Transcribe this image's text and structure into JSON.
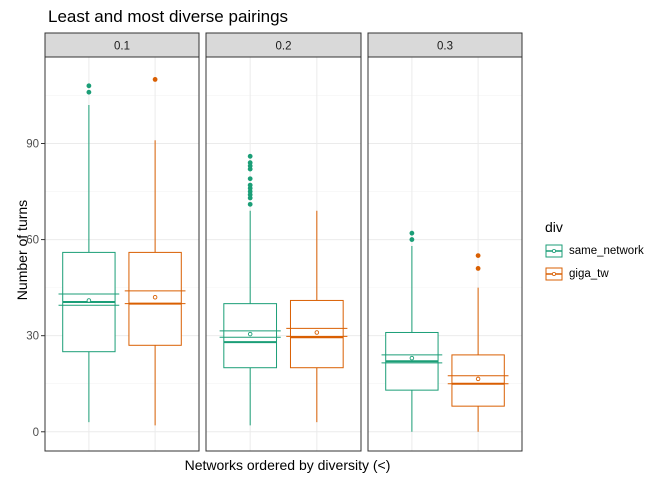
{
  "chart_data": {
    "type": "boxplot",
    "title": "Least and most diverse pairings",
    "xlabel": "Networks ordered by diversity (<)",
    "ylabel": "Number of turns",
    "ylim": [
      -6,
      117
    ],
    "y_ticks": [
      0,
      30,
      60,
      90
    ],
    "grid": true,
    "legend": {
      "title": "div",
      "placement": "right",
      "entries": [
        {
          "name": "same_network",
          "color": "#1b9e77"
        },
        {
          "name": "giga_tw",
          "color": "#d95f02"
        }
      ]
    },
    "panels": [
      {
        "label": "0.1",
        "series": [
          {
            "name": "same_network",
            "color": "#1b9e77",
            "min": 3,
            "q1": 25,
            "median": 40.5,
            "q3": 56,
            "max": 102,
            "mean": 41,
            "mean_ci": [
              39.5,
              43
            ],
            "outliers": [
              106,
              108
            ]
          },
          {
            "name": "giga_tw",
            "color": "#d95f02",
            "min": 2,
            "q1": 27,
            "median": 40,
            "q3": 56,
            "max": 91,
            "mean": 42,
            "mean_ci": [
              40,
              44
            ],
            "outliers": [
              110
            ]
          }
        ]
      },
      {
        "label": "0.2",
        "series": [
          {
            "name": "same_network",
            "color": "#1b9e77",
            "min": 2,
            "q1": 20,
            "median": 28,
            "q3": 40,
            "max": 69,
            "mean": 30.5,
            "mean_ci": [
              29.5,
              31.5
            ],
            "outliers": [
              71,
              73,
              74,
              75,
              76,
              77,
              79,
              82,
              83,
              84,
              86
            ]
          },
          {
            "name": "giga_tw",
            "color": "#d95f02",
            "min": 3,
            "q1": 20,
            "median": 29.5,
            "q3": 41,
            "max": 69,
            "mean": 31,
            "mean_ci": [
              29.8,
              32.3
            ],
            "outliers": []
          }
        ]
      },
      {
        "label": "0.3",
        "series": [
          {
            "name": "same_network",
            "color": "#1b9e77",
            "min": 0,
            "q1": 13,
            "median": 22,
            "q3": 31,
            "max": 58,
            "mean": 23,
            "mean_ci": [
              21.5,
              24
            ],
            "outliers": [
              60,
              62
            ]
          },
          {
            "name": "giga_tw",
            "color": "#d95f02",
            "min": 0,
            "q1": 8,
            "median": 15,
            "q3": 24,
            "max": 45,
            "mean": 16.5,
            "mean_ci": [
              15,
              17.5
            ],
            "outliers": [
              51,
              55
            ]
          }
        ]
      }
    ]
  }
}
